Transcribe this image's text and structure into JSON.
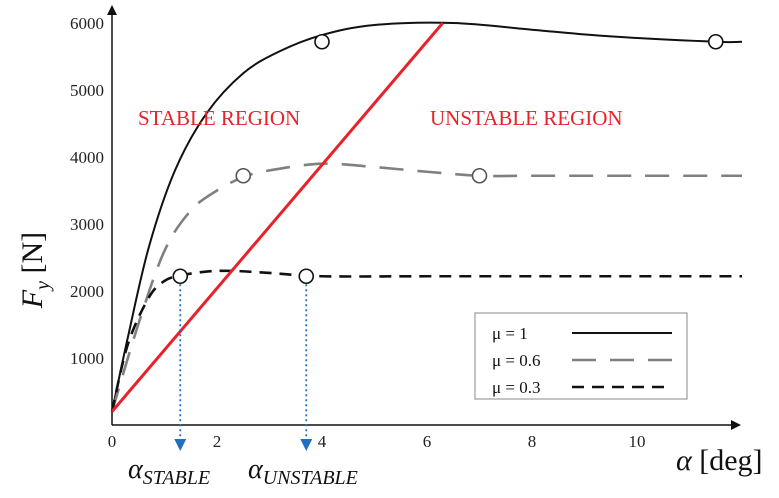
{
  "chart_data": {
    "type": "line",
    "xlabel_symbol": "α",
    "xlabel_unit": "[deg]",
    "ylabel_symbol": "F",
    "ylabel_sub": "y",
    "ylabel_unit": "[N]",
    "xlim": [
      0,
      12
    ],
    "ylim": [
      0,
      6000
    ],
    "xticks": [
      0,
      2,
      4,
      6,
      8,
      10
    ],
    "yticks": [
      1000,
      2000,
      3000,
      4000,
      5000,
      6000
    ],
    "grid": false,
    "legend_position": "bottom-right",
    "series": [
      {
        "name": "μ = 1",
        "color": "#111111",
        "dash": "solid",
        "x": [
          0,
          0.3,
          0.7,
          1.2,
          1.8,
          2.5,
          3.2,
          4.0,
          5.0,
          6.5,
          8.0,
          9.5,
          11.5,
          12.0
        ],
        "y": [
          200,
          1300,
          2650,
          3800,
          4650,
          5250,
          5580,
          5820,
          5970,
          6000,
          5900,
          5800,
          5720,
          5720
        ],
        "markers": [
          [
            4.0,
            5720
          ],
          [
            11.5,
            5720
          ]
        ]
      },
      {
        "name": "μ = 0.6",
        "color": "#808080",
        "dash": "long-dash",
        "x": [
          0,
          0.5,
          1.0,
          1.5,
          2.0,
          2.5,
          3.0,
          4.0,
          5.0,
          6.0,
          7.0,
          8.0,
          10.0,
          12.0
        ],
        "y": [
          200,
          1500,
          2600,
          3200,
          3500,
          3700,
          3800,
          3900,
          3850,
          3780,
          3720,
          3720,
          3720,
          3720
        ],
        "markers": [
          [
            2.5,
            3720
          ],
          [
            7.0,
            3720
          ]
        ]
      },
      {
        "name": "μ = 0.3",
        "color": "#111111",
        "dash": "short-dash",
        "x": [
          0,
          0.3,
          0.7,
          1.0,
          1.3,
          1.8,
          2.3,
          3.0,
          4.0,
          6.0,
          9.0,
          12.0
        ],
        "y": [
          200,
          1200,
          1900,
          2150,
          2230,
          2290,
          2300,
          2270,
          2220,
          2220,
          2220,
          2220
        ],
        "markers": [
          [
            1.3,
            2220
          ],
          [
            3.7,
            2220
          ]
        ]
      }
    ],
    "stability_line": {
      "color": "#e8222a",
      "from": [
        0,
        200
      ],
      "to": [
        6.3,
        6000
      ]
    },
    "region_labels": {
      "stable": "STABLE REGION",
      "unstable": "UNSTABLE REGION"
    },
    "alpha_markers": [
      {
        "x": 1.3,
        "y": 2220,
        "symbol": "α",
        "sub": "STABLE"
      },
      {
        "x": 3.7,
        "y": 2220,
        "symbol": "α",
        "sub": "UNSTABLE"
      }
    ],
    "marker_color": "#1f6fc4"
  }
}
